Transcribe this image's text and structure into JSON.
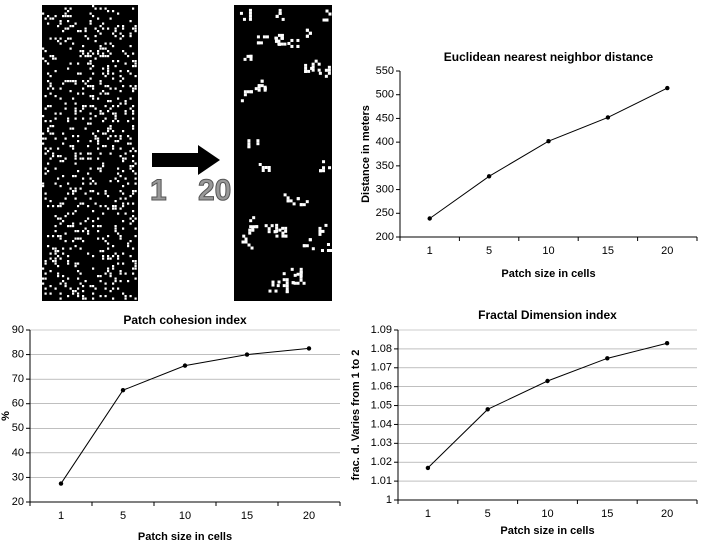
{
  "transition_labels": {
    "start": "1",
    "end": "20"
  },
  "chart_data": [
    {
      "type": "line",
      "title": "Euclidean nearest neighbor distance",
      "y_label": "Distance in meters",
      "x_label": "Patch size in cells",
      "categories": [
        "1",
        "5",
        "10",
        "15",
        "20"
      ],
      "values": [
        239,
        328,
        402,
        452,
        514
      ],
      "color": "#000000",
      "ylim": [
        200,
        550
      ],
      "yticks": [
        200,
        250,
        300,
        350,
        400,
        450,
        500,
        550
      ],
      "grid": false
    },
    {
      "type": "line",
      "title": "Patch cohesion index",
      "y_label": "%",
      "x_label": "Patch size in cells",
      "categories": [
        "1",
        "5",
        "10",
        "15",
        "20"
      ],
      "values": [
        27.5,
        65.5,
        75.5,
        80,
        82.5
      ],
      "color": "#000000",
      "ylim": [
        20,
        90
      ],
      "yticks": [
        20,
        30,
        40,
        50,
        60,
        70,
        80,
        90
      ],
      "grid": true
    },
    {
      "type": "line",
      "title": "Fractal Dimension index",
      "y_label": "frac. d. Varies from 1 to 2",
      "x_label": "Patch size in cells",
      "categories": [
        "1",
        "5",
        "10",
        "15",
        "20"
      ],
      "values": [
        1.017,
        1.048,
        1.063,
        1.075,
        1.083
      ],
      "color": "#000000",
      "ylim": [
        1,
        1.09
      ],
      "yticks": [
        1,
        1.01,
        1.02,
        1.03,
        1.04,
        1.05,
        1.06,
        1.07,
        1.08,
        1.09
      ],
      "grid": true
    }
  ]
}
